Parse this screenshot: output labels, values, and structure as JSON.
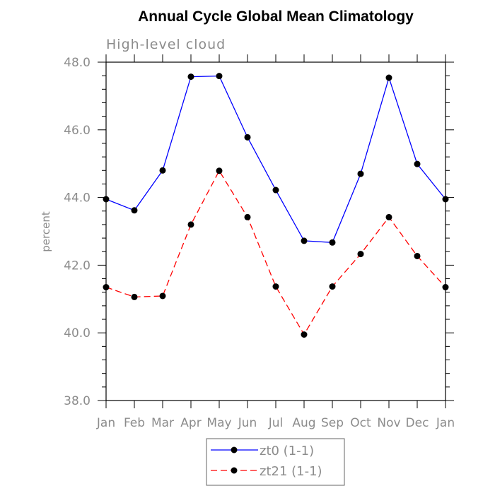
{
  "chart_data": {
    "type": "line",
    "title": "Annual Cycle Global Mean Climatology",
    "subtitle": "High-level cloud",
    "xlabel": "",
    "ylabel": "percent",
    "categories": [
      "Jan",
      "Feb",
      "Mar",
      "Apr",
      "May",
      "Jun",
      "Jul",
      "Aug",
      "Sep",
      "Oct",
      "Nov",
      "Dec",
      "Jan"
    ],
    "ylim": [
      38.0,
      48.0
    ],
    "yticks": [
      38.0,
      40.0,
      42.0,
      44.0,
      46.0,
      48.0
    ],
    "ytick_labels": [
      "38.0",
      "40.0",
      "42.0",
      "44.0",
      "46.0",
      "48.0"
    ],
    "grid": false,
    "legend_position": "bottom-center",
    "series": [
      {
        "name": "zt0 (1-1)",
        "color": "#0000ff",
        "dash": "solid",
        "marker": "filled-circle",
        "values": [
          43.95,
          43.62,
          44.8,
          47.57,
          47.59,
          45.78,
          44.22,
          42.72,
          42.67,
          44.7,
          47.54,
          44.99,
          43.95
        ]
      },
      {
        "name": "zt21 (1-1)",
        "color": "#ff0000",
        "dash": "dashed",
        "marker": "filled-circle",
        "values": [
          41.35,
          41.06,
          41.09,
          43.2,
          44.79,
          43.42,
          41.37,
          39.95,
          41.37,
          42.33,
          43.42,
          42.27,
          41.35
        ]
      }
    ]
  }
}
